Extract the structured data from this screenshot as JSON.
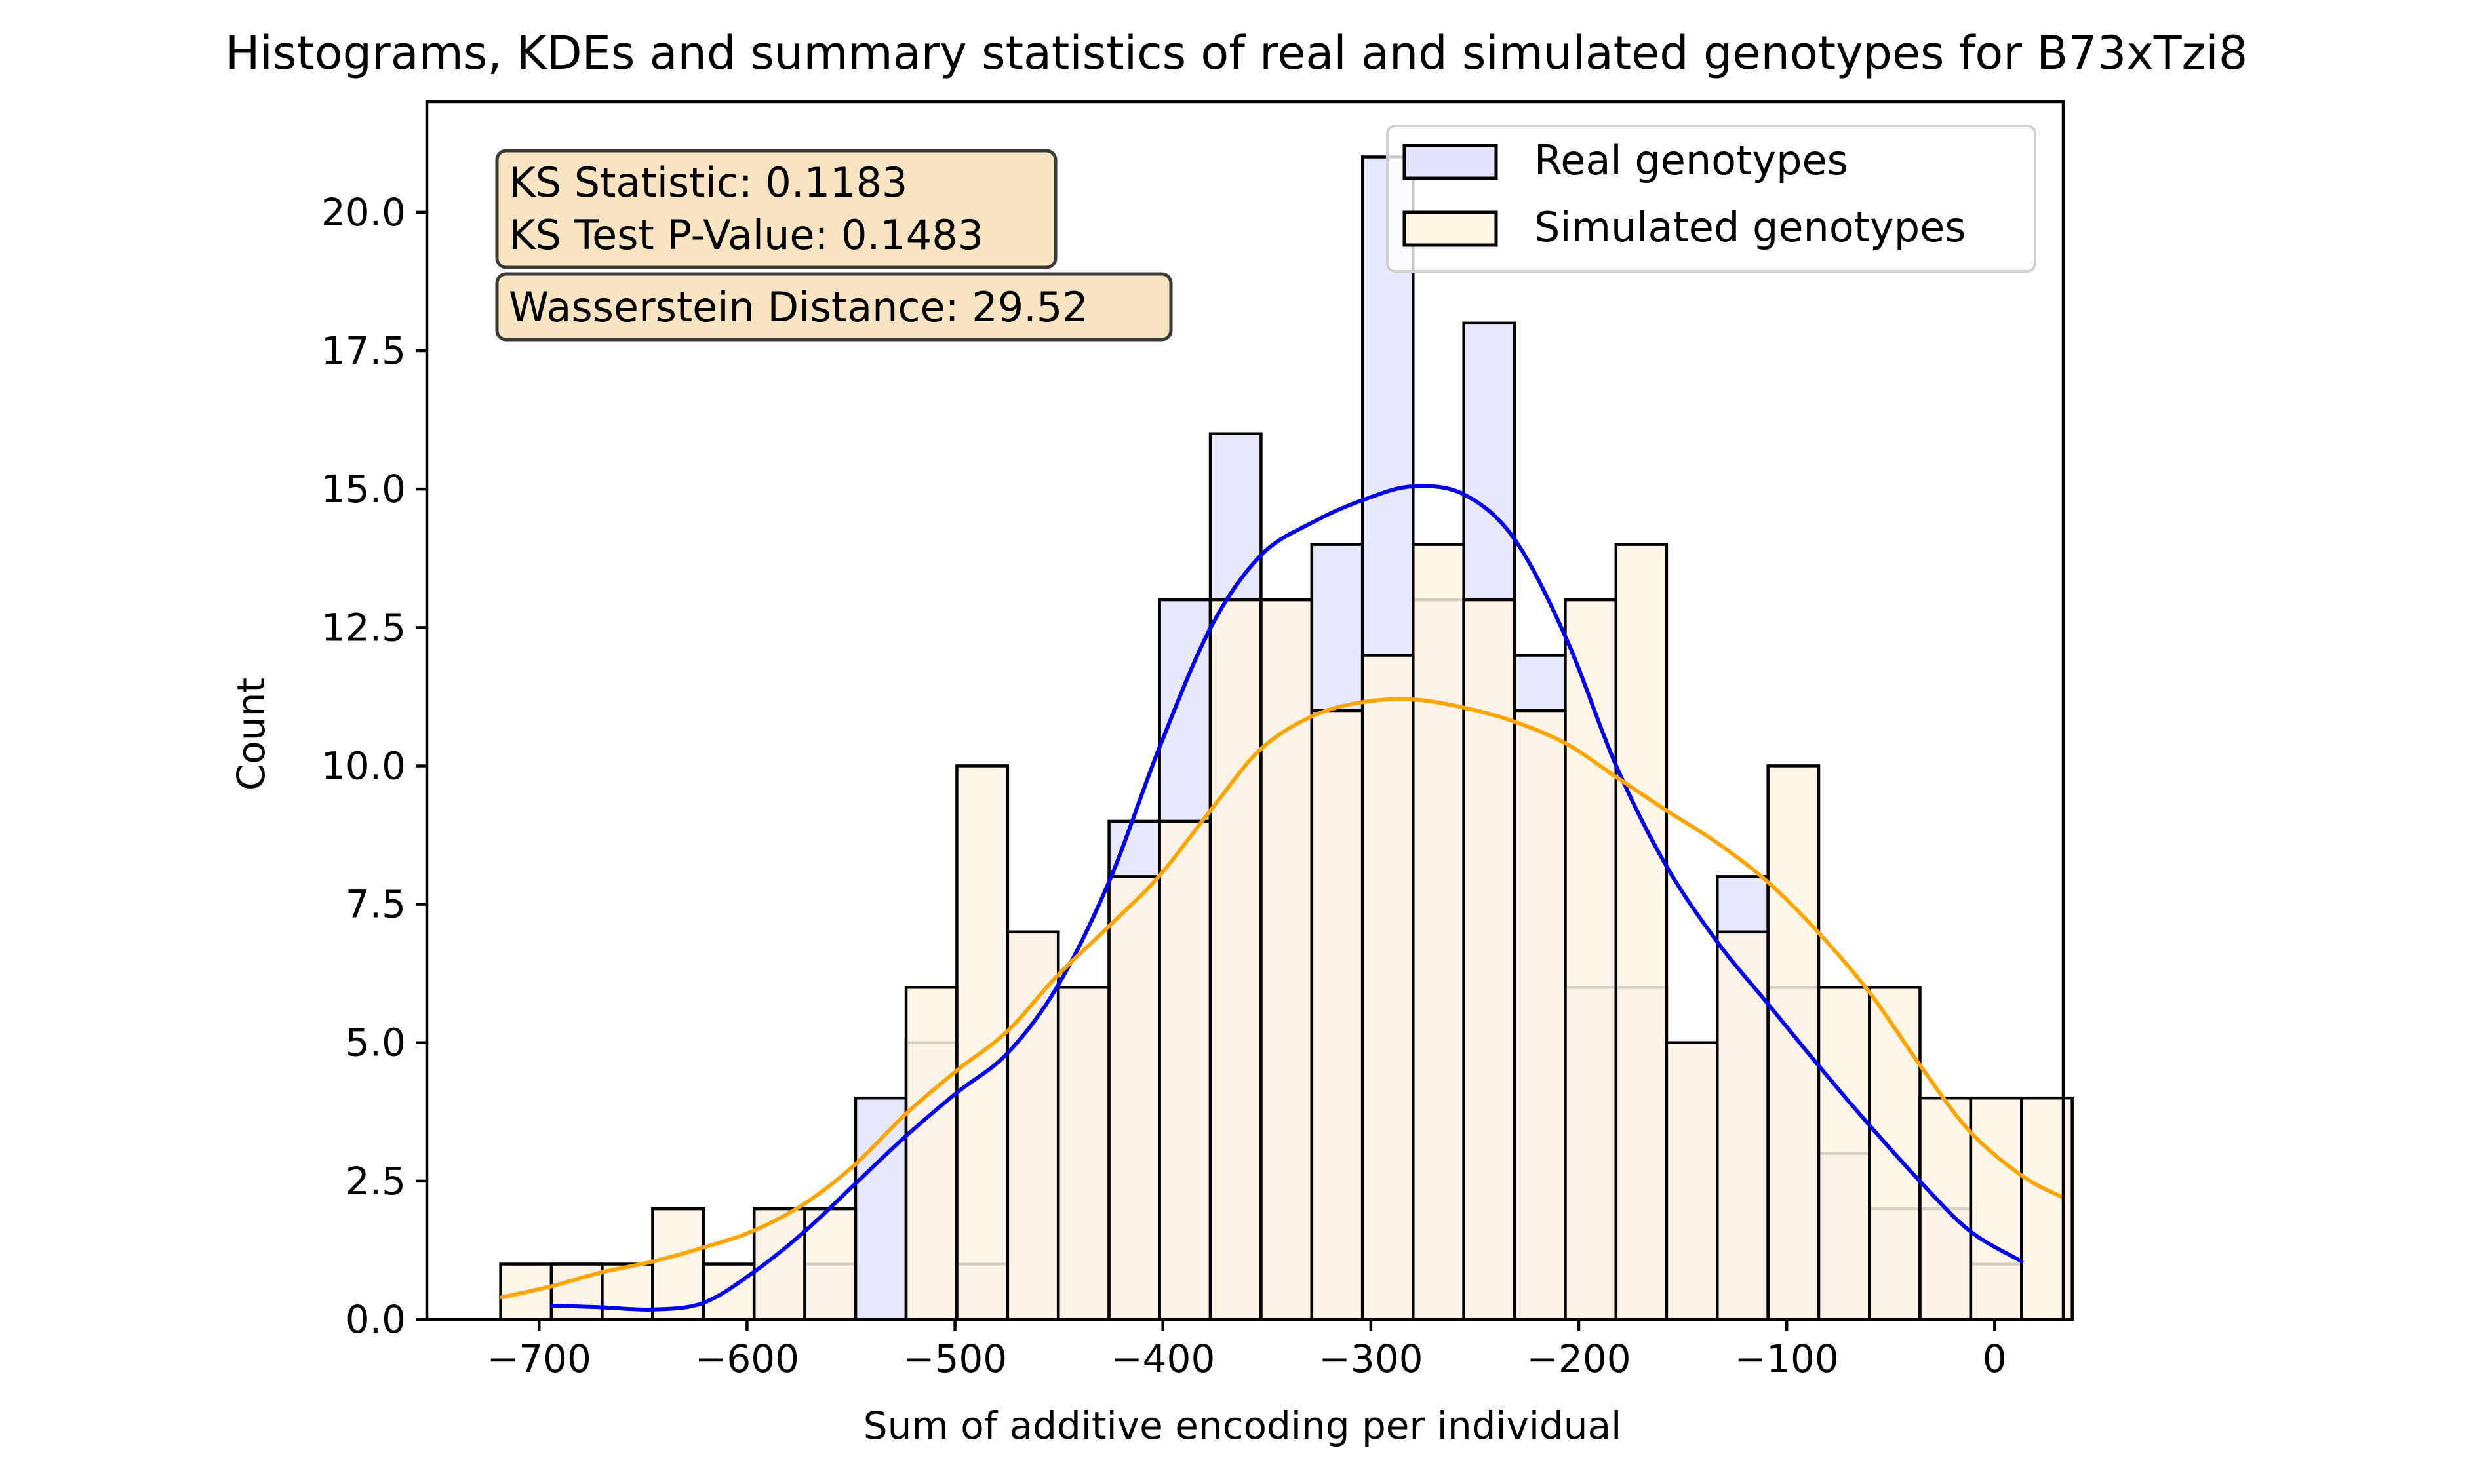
{
  "chart_data": {
    "type": "bar",
    "title": "Histograms, KDEs and summary statistics of real and simulated genotypes for B73xTzi8",
    "xlabel": "Sum of additive encoding per individual",
    "ylabel": "Count",
    "xlim": [
      -754,
      33
    ],
    "ylim": [
      0,
      22
    ],
    "xticks": [
      -700,
      -600,
      -500,
      -400,
      -300,
      -200,
      -100,
      0
    ],
    "xtick_labels": [
      "−700",
      "−600",
      "−500",
      "−400",
      "−300",
      "−200",
      "−100",
      "0"
    ],
    "yticks": [
      0,
      2.5,
      5,
      7.5,
      10,
      12.5,
      15,
      17.5,
      20
    ],
    "ytick_labels": [
      "0.0",
      "2.5",
      "5.0",
      "7.5",
      "10.0",
      "12.5",
      "15.0",
      "17.5",
      "20.0"
    ],
    "grid": false,
    "legend_position": "top-right",
    "bin_edges": [
      -718.5,
      -694.1,
      -669.7,
      -645.4,
      -621.0,
      -596.6,
      -572.2,
      -547.8,
      -523.5,
      -499.1,
      -474.7,
      -450.3,
      -425.9,
      -401.6,
      -377.2,
      -352.8,
      -328.4,
      -304.0,
      -279.7,
      -255.3,
      -230.9,
      -206.5,
      -182.1,
      -157.8,
      -133.4,
      -109.0,
      -84.6,
      -60.2,
      -35.9,
      -11.5,
      12.9,
      37.3
    ],
    "series": [
      {
        "name": "Real genotypes",
        "fill": "#e3e4fb",
        "start": -694.1,
        "counts": [
          1,
          0,
          0,
          0,
          2,
          1,
          4,
          5,
          1,
          7,
          6,
          9,
          13,
          16,
          13,
          14,
          21,
          13,
          18,
          12,
          6,
          6,
          5,
          8,
          6,
          3,
          2,
          2,
          1
        ],
        "kde_color": "#0000ee",
        "kde": [
          [
            -694,
            0.25
          ],
          [
            -670,
            0.22
          ],
          [
            -645,
            0.18
          ],
          [
            -621,
            0.3
          ],
          [
            -597,
            0.85
          ],
          [
            -572,
            1.6
          ],
          [
            -548,
            2.45
          ],
          [
            -524,
            3.3
          ],
          [
            -499,
            4.1
          ],
          [
            -475,
            4.8
          ],
          [
            -451,
            6.0
          ],
          [
            -426,
            7.9
          ],
          [
            -402,
            10.3
          ],
          [
            -377,
            12.5
          ],
          [
            -353,
            13.8
          ],
          [
            -328,
            14.4
          ],
          [
            -304,
            14.8
          ],
          [
            -280,
            15.05
          ],
          [
            -255,
            14.9
          ],
          [
            -231,
            14.1
          ],
          [
            -206,
            12.3
          ],
          [
            -182,
            10.0
          ],
          [
            -158,
            8.2
          ],
          [
            -133,
            6.8
          ],
          [
            -109,
            5.7
          ],
          [
            -85,
            4.6
          ],
          [
            -60,
            3.5
          ],
          [
            -36,
            2.5
          ],
          [
            -12,
            1.6
          ],
          [
            13,
            1.05
          ]
        ]
      },
      {
        "name": "Simulated genotypes",
        "fill": "#fef5e4",
        "start": -718.5,
        "counts": [
          1,
          1,
          1,
          2,
          1,
          2,
          2,
          0,
          6,
          10,
          7,
          6,
          8,
          9,
          13,
          13,
          11,
          12,
          14,
          13,
          11,
          13,
          14,
          5,
          7,
          10,
          6,
          6,
          4,
          4,
          4
        ],
        "kde_color": "#ffa500",
        "kde": [
          [
            -718,
            0.4
          ],
          [
            -694,
            0.6
          ],
          [
            -670,
            0.85
          ],
          [
            -645,
            1.05
          ],
          [
            -621,
            1.3
          ],
          [
            -597,
            1.6
          ],
          [
            -572,
            2.1
          ],
          [
            -548,
            2.8
          ],
          [
            -524,
            3.7
          ],
          [
            -499,
            4.5
          ],
          [
            -475,
            5.2
          ],
          [
            -451,
            6.2
          ],
          [
            -426,
            7.1
          ],
          [
            -402,
            8.0
          ],
          [
            -377,
            9.2
          ],
          [
            -353,
            10.3
          ],
          [
            -328,
            10.9
          ],
          [
            -304,
            11.15
          ],
          [
            -280,
            11.2
          ],
          [
            -255,
            11.05
          ],
          [
            -231,
            10.8
          ],
          [
            -206,
            10.4
          ],
          [
            -182,
            9.8
          ],
          [
            -158,
            9.2
          ],
          [
            -133,
            8.6
          ],
          [
            -109,
            7.9
          ],
          [
            -85,
            7.0
          ],
          [
            -60,
            5.9
          ],
          [
            -36,
            4.6
          ],
          [
            -12,
            3.4
          ],
          [
            13,
            2.6
          ],
          [
            33,
            2.2
          ]
        ]
      }
    ],
    "stats": {
      "ks_statistic": "KS Statistic: 0.1183",
      "ks_pvalue": "KS Test P-Value: 0.1483",
      "wasserstein": "Wasserstein Distance: 29.52"
    }
  }
}
